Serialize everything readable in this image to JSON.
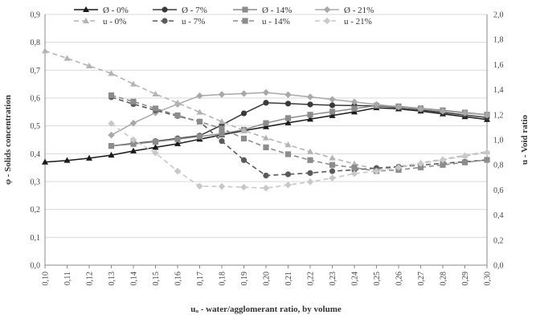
{
  "chart_data": {
    "type": "line",
    "x": [
      0.1,
      0.11,
      0.12,
      0.13,
      0.14,
      0.15,
      0.16,
      0.17,
      0.18,
      0.19,
      0.2,
      0.21,
      0.22,
      0.23,
      0.24,
      0.25,
      0.26,
      0.27,
      0.28,
      0.29,
      0.3
    ],
    "x_tick_labels": [
      "0,10",
      "0,11",
      "0,12",
      "0,13",
      "0,14",
      "0,15",
      "0,16",
      "0,17",
      "0,18",
      "0,19",
      "0,20",
      "0,21",
      "0,22",
      "0,23",
      "0,24",
      "0,25",
      "0,26",
      "0,27",
      "0,28",
      "0,29",
      "0,30"
    ],
    "xlabel": "uᵤ -  water/agglomerant ratio, by volume",
    "ylabel_left": "φ - Solids concentration",
    "ylabel_right": "u - Void ratio",
    "ylim_left": [
      0,
      0.9
    ],
    "ylim_right": [
      0,
      2.0
    ],
    "y_left_tick_labels": [
      "0,0",
      "0,1",
      "0,2",
      "0,3",
      "0,4",
      "0,5",
      "0,6",
      "0,7",
      "0,8",
      "0,9"
    ],
    "y_right_tick_labels": [
      "0,0",
      "0,2",
      "0,4",
      "0,6",
      "0,8",
      "1,0",
      "1,2",
      "1,4",
      "1,6",
      "1,8",
      "2,0"
    ],
    "grid": "horizontal",
    "legend_position": "top",
    "colors": {
      "p0": "#1a1a1a",
      "p7": "#3a3a3a",
      "p14": "#8c8c8c",
      "p21": "#a8a8a8",
      "u0": "#b4b4b4",
      "u7": "#5a5a5a",
      "u14": "#8c8c8c",
      "u21": "#c8c8c8",
      "grid": "#d9d9d9",
      "axis": "#888888"
    },
    "series": [
      {
        "name": "Ø - 0%",
        "key": "p0",
        "axis": "left",
        "style": "solid",
        "marker": "triangle",
        "values": [
          0.37,
          0.376,
          0.384,
          0.395,
          0.41,
          0.423,
          0.436,
          0.452,
          0.468,
          0.483,
          0.497,
          0.511,
          0.524,
          0.537,
          0.55,
          0.565,
          0.561,
          0.553,
          0.543,
          0.533,
          0.523
        ]
      },
      {
        "name": "Ø - 7%",
        "key": "p7",
        "axis": "left",
        "style": "solid",
        "marker": "circle",
        "values": [
          null,
          null,
          null,
          0.428,
          0.437,
          0.445,
          0.455,
          0.465,
          0.503,
          0.545,
          0.583,
          0.58,
          0.577,
          0.574,
          0.573,
          0.572,
          0.566,
          0.558,
          0.548,
          0.539,
          0.53
        ]
      },
      {
        "name": "Ø - 14%",
        "key": "p14",
        "axis": "left",
        "style": "solid",
        "marker": "square",
        "values": [
          null,
          null,
          null,
          0.428,
          0.435,
          0.443,
          0.452,
          0.462,
          0.472,
          0.486,
          0.51,
          0.528,
          0.54,
          0.551,
          0.562,
          0.573,
          0.57,
          0.563,
          0.556,
          0.548,
          0.54
        ]
      },
      {
        "name": "Ø - 21%",
        "key": "p21",
        "axis": "left",
        "style": "solid",
        "marker": "diamond",
        "values": [
          null,
          null,
          null,
          0.467,
          0.51,
          0.547,
          0.578,
          0.608,
          0.613,
          0.616,
          0.62,
          0.612,
          0.604,
          0.595,
          0.586,
          0.577,
          0.568,
          0.561,
          0.553,
          0.546,
          0.539
        ]
      },
      {
        "name": "u - 0%",
        "key": "u0",
        "axis": "right",
        "style": "dashed",
        "marker": "triangle",
        "values": [
          1.71,
          1.65,
          1.59,
          1.53,
          1.445,
          1.365,
          1.295,
          1.22,
          1.145,
          1.075,
          1.015,
          0.96,
          0.905,
          0.855,
          0.808,
          0.765,
          0.785,
          0.815,
          0.845,
          0.875,
          0.905
        ]
      },
      {
        "name": "u - 7%",
        "key": "u7",
        "axis": "right",
        "style": "dashed",
        "marker": "circle",
        "values": [
          null,
          null,
          null,
          1.34,
          1.285,
          1.235,
          1.19,
          1.145,
          0.99,
          0.838,
          0.715,
          0.725,
          0.735,
          0.75,
          0.76,
          0.775,
          0.785,
          0.798,
          0.812,
          0.825,
          0.84
        ]
      },
      {
        "name": "u - 14%",
        "key": "u14",
        "axis": "right",
        "style": "dashed",
        "marker": "square",
        "values": [
          null,
          null,
          null,
          1.355,
          1.305,
          1.25,
          1.195,
          1.145,
          1.09,
          1.01,
          0.94,
          0.885,
          0.838,
          0.8,
          0.778,
          0.75,
          0.76,
          0.78,
          0.8,
          0.82,
          0.84
        ]
      },
      {
        "name": "u - 21%",
        "key": "u21",
        "axis": "right",
        "style": "dashed",
        "marker": "diamond",
        "values": [
          null,
          null,
          null,
          1.13,
          1.0,
          0.895,
          0.75,
          0.63,
          0.628,
          0.622,
          0.615,
          0.64,
          0.665,
          0.695,
          0.73,
          0.75,
          0.78,
          0.81,
          0.84,
          0.87,
          0.9
        ]
      }
    ]
  }
}
